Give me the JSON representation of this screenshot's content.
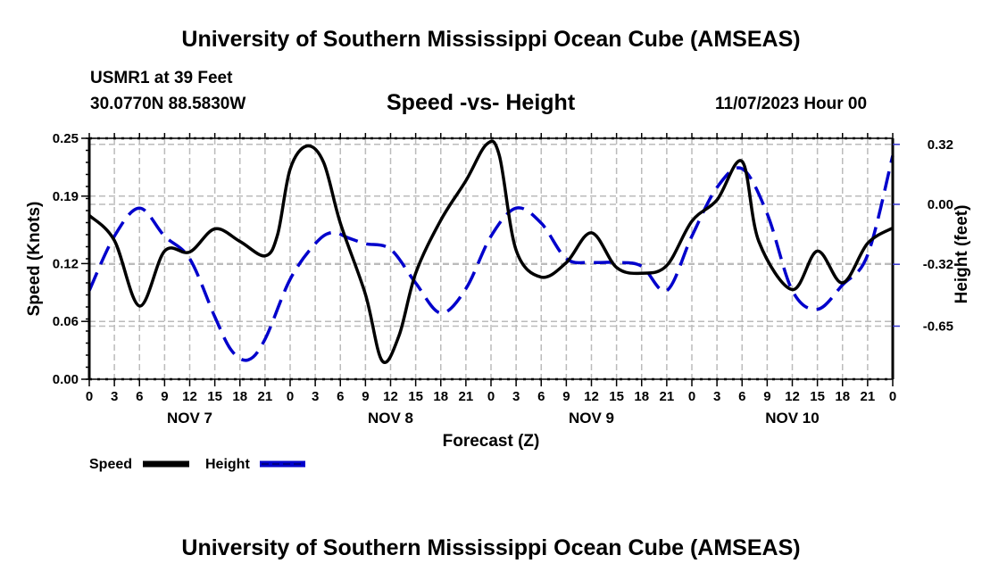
{
  "header": {
    "title": "University of Southern Mississippi Ocean Cube (AMSEAS)",
    "station": "USMR1 at 39 Feet",
    "coordinates": "30.0770N  88.5830W",
    "chart_title": "Speed -vs- Height",
    "date": "11/07/2023 Hour 00"
  },
  "footer": {
    "title": "University of Southern Mississippi Ocean Cube (AMSEAS)"
  },
  "colors": {
    "speed": "#000000",
    "height": "#0000cc",
    "grid": "#bbbbbb"
  },
  "chart_data": {
    "type": "line",
    "title": "Speed -vs- Height",
    "xlabel": "Forecast (Z)",
    "ylabel": "Speed (Knots)",
    "y2label": "Height (feet)",
    "xlim": [
      0,
      96
    ],
    "ylim": [
      0,
      0.25
    ],
    "y2lim": [
      -0.93,
      0.35
    ],
    "grid": true,
    "x_tick_labels": [
      "0",
      "3",
      "6",
      "9",
      "12",
      "15",
      "18",
      "21",
      "0",
      "3",
      "6",
      "9",
      "12",
      "15",
      "18",
      "21",
      "0",
      "3",
      "6",
      "9",
      "12",
      "15",
      "18",
      "21",
      "0",
      "3",
      "6",
      "9",
      "12",
      "15",
      "18",
      "21",
      "0"
    ],
    "x_tick_hours": [
      0,
      3,
      6,
      9,
      12,
      15,
      18,
      21,
      24,
      27,
      30,
      33,
      36,
      39,
      42,
      45,
      48,
      51,
      54,
      57,
      60,
      63,
      66,
      69,
      72,
      75,
      78,
      81,
      84,
      87,
      90,
      93,
      96
    ],
    "date_labels": [
      {
        "label": "NOV 7",
        "hour": 12
      },
      {
        "label": "NOV 8",
        "hour": 36
      },
      {
        "label": "NOV 9",
        "hour": 60
      },
      {
        "label": "NOV 10",
        "hour": 84
      }
    ],
    "y_ticks": [
      0.0,
      0.06,
      0.12,
      0.19,
      0.25
    ],
    "y_tick_labels": [
      "0.00",
      "0.06",
      "0.12",
      "0.19",
      "0.25"
    ],
    "y2_ticks": [
      0.32,
      0.0,
      -0.32,
      -0.65
    ],
    "y2_tick_labels": [
      "0.32",
      "0.00",
      "-0.32",
      "-0.65"
    ],
    "legend": {
      "position": "bottom-left",
      "entries": [
        {
          "name": "Speed",
          "style": "solid"
        },
        {
          "name": "Height",
          "style": "dashed"
        }
      ]
    },
    "series": [
      {
        "name": "Speed",
        "axis": "left",
        "units": "knots",
        "x": [
          0,
          3,
          6,
          9,
          12,
          15,
          18,
          21,
          22.5,
          24,
          26,
          28,
          30,
          33,
          35,
          37,
          39,
          42,
          45,
          47.5,
          49,
          51,
          54,
          57,
          60,
          63,
          66,
          69,
          72,
          75,
          78,
          80,
          84,
          87,
          90,
          93,
          96
        ],
        "values": [
          0.17,
          0.144,
          0.076,
          0.133,
          0.132,
          0.156,
          0.143,
          0.128,
          0.15,
          0.218,
          0.242,
          0.225,
          0.162,
          0.088,
          0.019,
          0.045,
          0.11,
          0.165,
          0.206,
          0.244,
          0.232,
          0.134,
          0.106,
          0.121,
          0.152,
          0.116,
          0.11,
          0.118,
          0.164,
          0.186,
          0.226,
          0.143,
          0.093,
          0.133,
          0.1,
          0.141,
          0.157
        ]
      },
      {
        "name": "Height",
        "axis": "right",
        "units": "feet",
        "x": [
          0,
          3,
          6,
          9,
          12,
          15,
          17,
          19,
          21,
          24,
          27,
          29,
          31,
          33,
          36,
          39,
          42,
          45,
          48,
          51,
          54,
          57,
          60,
          63,
          66,
          69,
          72,
          75,
          78,
          81,
          84,
          87,
          90,
          93,
          96
        ],
        "values": [
          -0.46,
          -0.17,
          -0.02,
          -0.17,
          -0.29,
          -0.6,
          -0.78,
          -0.83,
          -0.72,
          -0.4,
          -0.21,
          -0.15,
          -0.18,
          -0.21,
          -0.24,
          -0.42,
          -0.58,
          -0.45,
          -0.17,
          -0.02,
          -0.1,
          -0.29,
          -0.31,
          -0.31,
          -0.33,
          -0.46,
          -0.17,
          0.09,
          0.19,
          -0.05,
          -0.46,
          -0.56,
          -0.43,
          -0.27,
          0.26
        ]
      }
    ]
  }
}
